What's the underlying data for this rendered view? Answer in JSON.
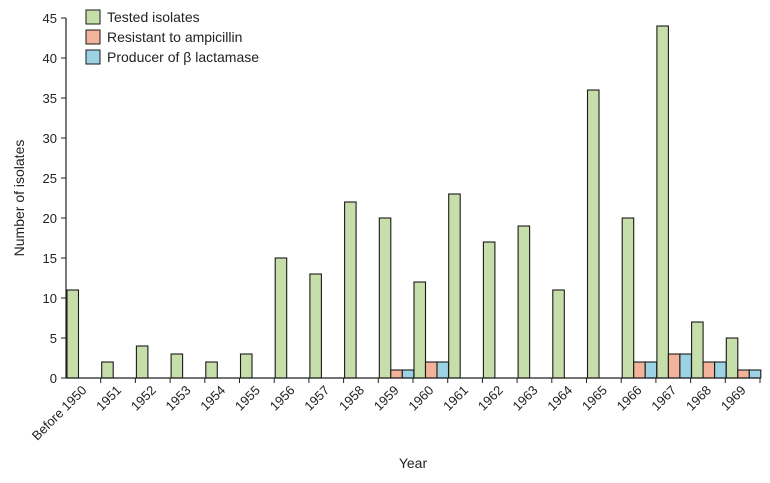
{
  "chart_data": {
    "type": "bar",
    "title": "",
    "xlabel": "Year",
    "ylabel": "Number of isolates",
    "ylim": [
      0,
      45
    ],
    "yticks": [
      0,
      5,
      10,
      15,
      20,
      25,
      30,
      35,
      40,
      45
    ],
    "grid": false,
    "legend_position": "top-left",
    "categories": [
      "Before 1950",
      "1951",
      "1952",
      "1953",
      "1954",
      "1955",
      "1956",
      "1957",
      "1958",
      "1959",
      "1960",
      "1961",
      "1962",
      "1963",
      "1964",
      "1965",
      "1966",
      "1967",
      "1968",
      "1969"
    ],
    "series": [
      {
        "name": "Tested isolates",
        "color": "#c5deaa",
        "values": [
          11,
          2,
          4,
          3,
          2,
          3,
          15,
          13,
          22,
          20,
          12,
          23,
          17,
          19,
          11,
          36,
          20,
          44,
          7,
          5
        ]
      },
      {
        "name": "Resistant to ampicillin",
        "color": "#f2b39a",
        "values": [
          0,
          0,
          0,
          0,
          0,
          0,
          0,
          0,
          0,
          1,
          2,
          0,
          0,
          0,
          0,
          0,
          2,
          3,
          2,
          1
        ]
      },
      {
        "name": "Producer of β lactamase",
        "color": "#9dd2e4",
        "values": [
          0,
          0,
          0,
          0,
          0,
          0,
          0,
          0,
          0,
          1,
          2,
          0,
          0,
          0,
          0,
          0,
          2,
          3,
          2,
          1
        ]
      }
    ]
  }
}
